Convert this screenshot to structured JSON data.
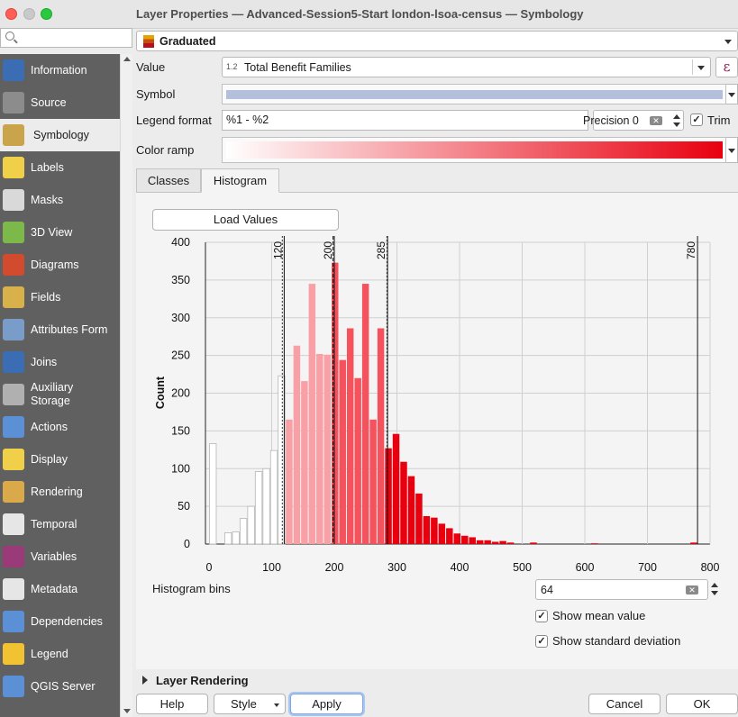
{
  "window": {
    "title": "Layer Properties — Advanced-Session5-Start london-lsoa-census — Symbology"
  },
  "sidebar": {
    "search_placeholder": "",
    "items": [
      {
        "label": "Information",
        "icon": "information-icon",
        "color": "#3b6db4"
      },
      {
        "label": "Source",
        "icon": "source-wrench-icon",
        "color": "#8c8c8c"
      },
      {
        "label": "Symbology",
        "icon": "symbology-brush-icon",
        "color": "#c9a44a",
        "active": true
      },
      {
        "label": "Labels",
        "icon": "labels-abc-icon",
        "color": "#f1d049"
      },
      {
        "label": "Masks",
        "icon": "masks-abc-icon",
        "color": "#d9d9d9"
      },
      {
        "label": "3D View",
        "icon": "cube-3d-icon",
        "color": "#7db84a"
      },
      {
        "label": "Diagrams",
        "icon": "diagrams-icon",
        "color": "#d24b2e"
      },
      {
        "label": "Fields",
        "icon": "fields-table-icon",
        "color": "#d9b14a"
      },
      {
        "label": "Attributes Form",
        "icon": "attributes-form-icon",
        "color": "#7a9cc9"
      },
      {
        "label": "Joins",
        "icon": "joins-icon",
        "color": "#3b6db4"
      },
      {
        "label": "Auxiliary Storage",
        "icon": "auxiliary-storage-icon",
        "color": "#b0b0b0"
      },
      {
        "label": "Actions",
        "icon": "actions-gear-icon",
        "color": "#5b8fd6"
      },
      {
        "label": "Display",
        "icon": "display-speech-bubble-icon",
        "color": "#f1d049"
      },
      {
        "label": "Rendering",
        "icon": "rendering-brush-icon",
        "color": "#d9a94a"
      },
      {
        "label": "Temporal",
        "icon": "temporal-clock-icon",
        "color": "#e6e6e6"
      },
      {
        "label": "Variables",
        "icon": "variables-epsilon-icon",
        "color": "#9b3a78"
      },
      {
        "label": "Metadata",
        "icon": "metadata-pen-icon",
        "color": "#e6e6e6"
      },
      {
        "label": "Dependencies",
        "icon": "dependencies-icon",
        "color": "#5b8fd6"
      },
      {
        "label": "Legend",
        "icon": "legend-icon",
        "color": "#f1c232"
      },
      {
        "label": "QGIS Server",
        "icon": "qgis-server-icon",
        "color": "#5b8fd6"
      }
    ]
  },
  "symbology": {
    "renderer": "Graduated",
    "value_label": "Value",
    "value_type_tag": "1.2",
    "value_field": "Total Benefit Families",
    "expression_button": "ε",
    "symbol_label": "Symbol",
    "symbol_color": "#b4bfdc",
    "legend_format_label": "Legend format",
    "legend_format": "%1 - %2",
    "precision_text": "Precision 0",
    "trim_label": "Trim",
    "trim_checked": true,
    "color_ramp_label": "Color ramp",
    "color_ramp": {
      "start": "#ffffff",
      "end": "#e8000f"
    }
  },
  "tabs": [
    {
      "label": "Classes",
      "active": false
    },
    {
      "label": "Histogram",
      "active": true
    }
  ],
  "histogram": {
    "load_values_button": "Load Values",
    "bins_label": "Histogram bins",
    "bins_value": "64",
    "show_mean_label": "Show mean value",
    "show_mean_checked": true,
    "show_std_label": "Show standard deviation",
    "show_std_checked": true
  },
  "chart_data": {
    "type": "bar",
    "ylabel": "Count",
    "xlabel": "",
    "xlim": [
      0,
      800
    ],
    "ylim": [
      0,
      400
    ],
    "x_ticks": [
      0,
      100,
      200,
      300,
      400,
      500,
      600,
      700,
      800
    ],
    "y_ticks": [
      0,
      50,
      100,
      150,
      200,
      250,
      300,
      350,
      400
    ],
    "bin_width": 12.1875,
    "bin_counts": [
      133,
      0,
      15,
      16,
      34,
      50,
      96,
      100,
      124,
      223,
      165,
      263,
      216,
      345,
      252,
      251,
      373,
      244,
      286,
      220,
      345,
      165,
      286,
      127,
      146,
      109,
      90,
      67,
      37,
      35,
      27,
      21,
      14,
      11,
      9,
      5,
      5,
      3,
      4,
      2,
      0,
      0,
      2,
      0,
      0,
      0,
      0,
      0,
      0,
      0,
      1,
      0,
      0,
      0,
      0,
      0,
      0,
      0,
      0,
      0,
      0,
      0,
      0,
      2
    ],
    "class_breaks": [
      120,
      200,
      285,
      780
    ],
    "break_labels": [
      "120",
      "200",
      "285",
      "780"
    ],
    "mean_value": 198,
    "std_dev_values": [
      117,
      284
    ],
    "class_colors": [
      "#ffffff",
      "#f8a0a5",
      "#f4535e",
      "#e8000f"
    ]
  },
  "layer_rendering": {
    "label": "Layer Rendering"
  },
  "buttons": {
    "help": "Help",
    "style": "Style",
    "apply": "Apply",
    "cancel": "Cancel",
    "ok": "OK"
  }
}
